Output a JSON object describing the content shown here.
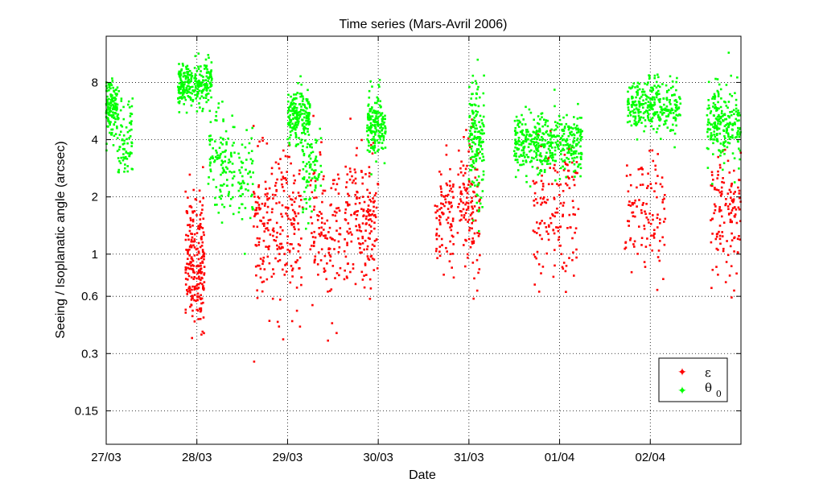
{
  "chart_data": {
    "type": "scatter",
    "title": "Time series (Mars-Avril 2006)",
    "xlabel": "Date",
    "ylabel": "Seeing / Isoplanatic angle (arcsec)",
    "yscale": "log",
    "ylim": [
      0.1,
      14
    ],
    "xlim": [
      "27/03",
      "03/04"
    ],
    "xticks": [
      "27/03",
      "28/03",
      "29/03",
      "30/03",
      "31/03",
      "01/04",
      "02/04"
    ],
    "yticks": [
      {
        "value": 0.15,
        "label": "0.15"
      },
      {
        "value": 0.3,
        "label": "0.3"
      },
      {
        "value": 0.6,
        "label": "0.6"
      },
      {
        "value": 1,
        "label": "1"
      },
      {
        "value": 2,
        "label": "2"
      },
      {
        "value": 4,
        "label": "4"
      },
      {
        "value": 8,
        "label": "8"
      }
    ],
    "grid": true,
    "legend_position": "bottom-right",
    "series": [
      {
        "name": "ε",
        "legend_main": "ε",
        "legend_sub": "",
        "color": "#ff0000",
        "clusters": [
          {
            "start": "27/03 21:00",
            "end": "28/03 02:00",
            "n": 230,
            "median": 0.93,
            "spread": 0.17
          },
          {
            "start": "28/03 15:00",
            "end": "29/03 04:00",
            "n": 240,
            "median": 1.35,
            "spread": 0.2
          },
          {
            "start": "29/03 06:00",
            "end": "29/03 14:00",
            "n": 120,
            "median": 1.3,
            "spread": 0.2
          },
          {
            "start": "29/03 15:00",
            "end": "30/03 00:00",
            "n": 180,
            "median": 1.5,
            "spread": 0.17
          },
          {
            "start": "30/03 15:00",
            "end": "30/03 20:00",
            "n": 90,
            "median": 1.55,
            "spread": 0.15
          },
          {
            "start": "30/03 21:00",
            "end": "31/03 03:00",
            "n": 120,
            "median": 1.9,
            "spread": 0.18
          },
          {
            "start": "31/03 17:00",
            "end": "01/04 05:00",
            "n": 150,
            "median": 1.6,
            "spread": 0.2
          },
          {
            "start": "01/04 17:00",
            "end": "02/04 04:00",
            "n": 110,
            "median": 1.6,
            "spread": 0.15
          },
          {
            "start": "02/04 16:00",
            "end": "02/04 23:59",
            "n": 130,
            "median": 1.55,
            "spread": 0.16
          }
        ]
      },
      {
        "name": "θ0",
        "legend_main": "θ",
        "legend_sub": "0",
        "color": "#00ff00",
        "clusters": [
          {
            "start": "26/03 23:59",
            "end": "27/03 03:00",
            "n": 140,
            "median": 6.0,
            "spread": 0.07
          },
          {
            "start": "27/03 03:00",
            "end": "27/03 07:00",
            "n": 80,
            "median": 3.8,
            "spread": 0.12
          },
          {
            "start": "27/03 19:00",
            "end": "28/03 04:00",
            "n": 260,
            "median": 7.8,
            "spread": 0.06
          },
          {
            "start": "28/03 03:00",
            "end": "28/03 10:00",
            "n": 120,
            "median": 3.0,
            "spread": 0.15
          },
          {
            "start": "28/03 11:00",
            "end": "28/03 15:00",
            "n": 60,
            "median": 2.3,
            "spread": 0.12
          },
          {
            "start": "29/03 00:00",
            "end": "29/03 06:00",
            "n": 200,
            "median": 5.2,
            "spread": 0.07
          },
          {
            "start": "29/03 04:00",
            "end": "29/03 09:00",
            "n": 80,
            "median": 2.8,
            "spread": 0.12
          },
          {
            "start": "29/03 21:00",
            "end": "30/03 02:00",
            "n": 180,
            "median": 4.9,
            "spread": 0.08
          },
          {
            "start": "31/03 00:00",
            "end": "31/03 04:00",
            "n": 160,
            "median": 4.0,
            "spread": 0.16
          },
          {
            "start": "31/03 12:00",
            "end": "01/04 06:00",
            "n": 420,
            "median": 3.8,
            "spread": 0.08
          },
          {
            "start": "01/04 18:00",
            "end": "02/04 08:00",
            "n": 300,
            "median": 6.0,
            "spread": 0.07
          },
          {
            "start": "02/04 15:00",
            "end": "02/04 23:59",
            "n": 220,
            "median": 4.8,
            "spread": 0.1
          }
        ]
      }
    ]
  }
}
